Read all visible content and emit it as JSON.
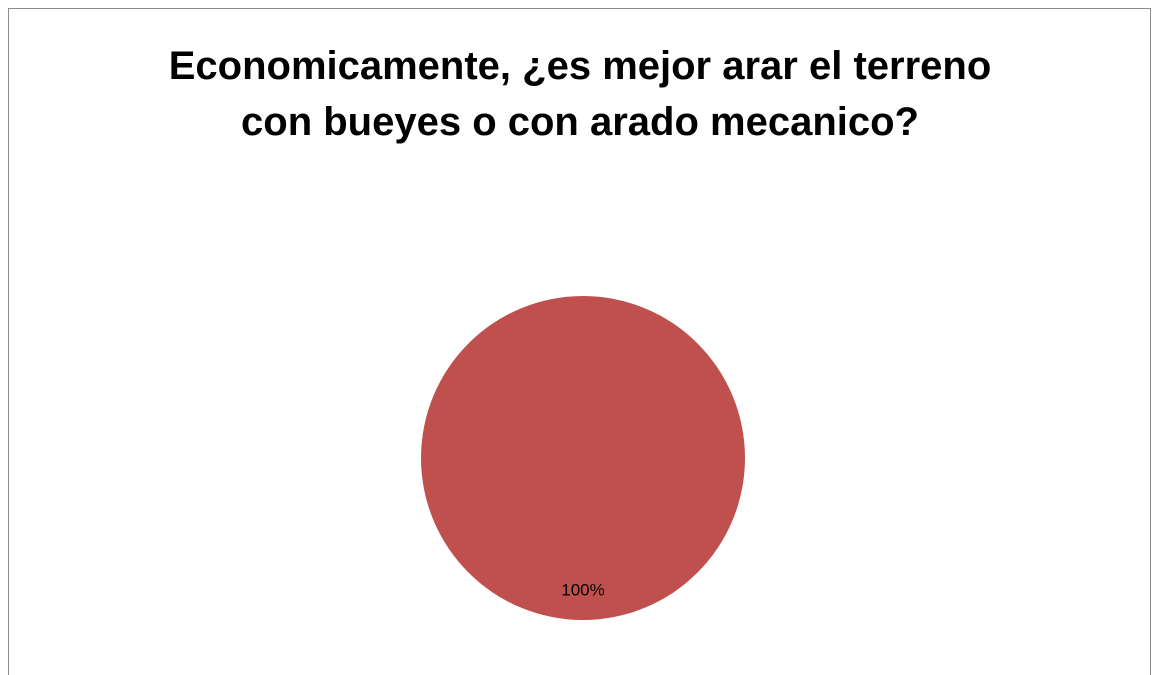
{
  "chart_data": {
    "type": "pie",
    "title": "Economicamente, ¿es mejor arar el terreno con bueyes o con arado mecanico?",
    "categories": [
      null
    ],
    "values": [
      100
    ],
    "value_labels": [
      "100%"
    ],
    "colors": [
      "#c0504d"
    ]
  }
}
